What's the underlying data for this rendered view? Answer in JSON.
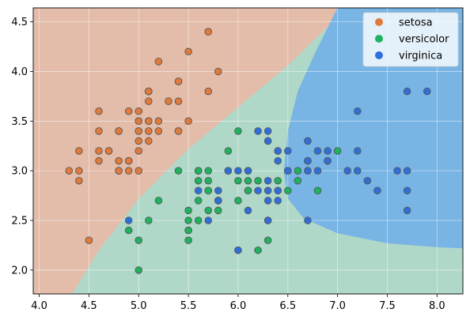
{
  "chart_data": {
    "type": "scatter",
    "title": "",
    "xlabel": "",
    "ylabel": "",
    "xlim": [
      3.94,
      8.26
    ],
    "ylim": [
      1.76,
      4.64
    ],
    "xticks": [
      4.0,
      4.5,
      5.0,
      5.5,
      6.0,
      6.5,
      7.0,
      7.5,
      8.0
    ],
    "yticks": [
      2.0,
      2.5,
      3.0,
      3.5,
      4.0,
      4.5
    ],
    "xtick_labels": [
      "4.0",
      "4.5",
      "5.0",
      "5.5",
      "6.0",
      "6.5",
      "7.0",
      "7.5",
      "8.0"
    ],
    "ytick_labels": [
      "2.0",
      "2.5",
      "3.0",
      "3.5",
      "4.0",
      "4.5"
    ],
    "grid": true,
    "legend_position": "top-right",
    "background_regions": [
      {
        "class": "setosa",
        "color": "#e3bcaa"
      },
      {
        "class": "versicolor",
        "color": "#b0d8c8"
      },
      {
        "class": "virginica",
        "color": "#78b4e4"
      }
    ],
    "series": [
      {
        "name": "setosa",
        "color": "#e07b3c",
        "points": [
          [
            5.1,
            3.5
          ],
          [
            4.9,
            3.0
          ],
          [
            4.7,
            3.2
          ],
          [
            4.6,
            3.1
          ],
          [
            5.0,
            3.6
          ],
          [
            5.4,
            3.9
          ],
          [
            4.6,
            3.4
          ],
          [
            5.0,
            3.4
          ],
          [
            4.4,
            2.9
          ],
          [
            4.9,
            3.1
          ],
          [
            5.4,
            3.7
          ],
          [
            4.8,
            3.4
          ],
          [
            4.8,
            3.0
          ],
          [
            4.3,
            3.0
          ],
          [
            5.8,
            4.0
          ],
          [
            5.7,
            4.4
          ],
          [
            5.4,
            3.9
          ],
          [
            5.1,
            3.5
          ],
          [
            5.7,
            3.8
          ],
          [
            5.1,
            3.8
          ],
          [
            5.4,
            3.4
          ],
          [
            5.1,
            3.7
          ],
          [
            4.6,
            3.6
          ],
          [
            5.1,
            3.3
          ],
          [
            4.8,
            3.4
          ],
          [
            5.0,
            3.0
          ],
          [
            5.0,
            3.4
          ],
          [
            5.2,
            3.5
          ],
          [
            5.2,
            3.4
          ],
          [
            4.7,
            3.2
          ],
          [
            4.8,
            3.1
          ],
          [
            5.4,
            3.4
          ],
          [
            5.2,
            4.1
          ],
          [
            5.5,
            4.2
          ],
          [
            4.9,
            3.1
          ],
          [
            5.0,
            3.2
          ],
          [
            5.5,
            3.5
          ],
          [
            4.9,
            3.6
          ],
          [
            4.4,
            3.0
          ],
          [
            5.1,
            3.4
          ],
          [
            5.0,
            3.5
          ],
          [
            4.5,
            2.3
          ],
          [
            4.4,
            3.2
          ],
          [
            5.0,
            3.5
          ],
          [
            5.1,
            3.8
          ],
          [
            4.8,
            3.0
          ],
          [
            5.1,
            3.8
          ],
          [
            4.6,
            3.2
          ],
          [
            5.3,
            3.7
          ],
          [
            5.0,
            3.3
          ]
        ]
      },
      {
        "name": "versicolor",
        "color": "#1fb25f",
        "points": [
          [
            7.0,
            3.2
          ],
          [
            6.4,
            3.2
          ],
          [
            6.9,
            3.1
          ],
          [
            5.5,
            2.3
          ],
          [
            6.5,
            2.8
          ],
          [
            5.7,
            2.8
          ],
          [
            6.3,
            3.3
          ],
          [
            4.9,
            2.4
          ],
          [
            6.6,
            2.9
          ],
          [
            5.2,
            2.7
          ],
          [
            5.0,
            2.0
          ],
          [
            5.9,
            3.0
          ],
          [
            6.0,
            2.2
          ],
          [
            6.1,
            2.9
          ],
          [
            5.6,
            2.9
          ],
          [
            6.7,
            3.1
          ],
          [
            5.6,
            3.0
          ],
          [
            5.8,
            2.7
          ],
          [
            6.2,
            2.2
          ],
          [
            5.6,
            2.5
          ],
          [
            5.9,
            3.2
          ],
          [
            6.1,
            2.8
          ],
          [
            6.3,
            2.5
          ],
          [
            6.1,
            2.8
          ],
          [
            6.4,
            2.9
          ],
          [
            6.6,
            3.0
          ],
          [
            6.8,
            2.8
          ],
          [
            6.7,
            3.0
          ],
          [
            6.0,
            2.9
          ],
          [
            5.7,
            2.6
          ],
          [
            5.5,
            2.4
          ],
          [
            5.5,
            2.4
          ],
          [
            5.8,
            2.7
          ],
          [
            6.0,
            2.7
          ],
          [
            5.4,
            3.0
          ],
          [
            6.0,
            3.4
          ],
          [
            6.7,
            3.1
          ],
          [
            6.3,
            2.3
          ],
          [
            5.6,
            3.0
          ],
          [
            5.5,
            2.5
          ],
          [
            5.5,
            2.6
          ],
          [
            6.1,
            3.0
          ],
          [
            5.8,
            2.6
          ],
          [
            5.0,
            2.3
          ],
          [
            5.6,
            2.7
          ],
          [
            5.7,
            3.0
          ],
          [
            5.7,
            2.9
          ],
          [
            6.2,
            2.9
          ],
          [
            5.1,
            2.5
          ],
          [
            5.7,
            2.8
          ]
        ]
      },
      {
        "name": "virginica",
        "color": "#2f6fdc",
        "points": [
          [
            6.3,
            3.3
          ],
          [
            5.8,
            2.7
          ],
          [
            7.1,
            3.0
          ],
          [
            6.3,
            2.9
          ],
          [
            6.5,
            3.0
          ],
          [
            7.6,
            3.0
          ],
          [
            4.9,
            2.5
          ],
          [
            7.3,
            2.9
          ],
          [
            6.7,
            2.5
          ],
          [
            7.2,
            3.6
          ],
          [
            6.5,
            3.2
          ],
          [
            6.4,
            2.7
          ],
          [
            6.8,
            3.0
          ],
          [
            5.7,
            2.5
          ],
          [
            5.8,
            2.8
          ],
          [
            6.4,
            3.2
          ],
          [
            6.5,
            3.0
          ],
          [
            7.7,
            3.8
          ],
          [
            7.7,
            2.6
          ],
          [
            6.0,
            2.2
          ],
          [
            6.9,
            3.2
          ],
          [
            5.6,
            2.8
          ],
          [
            7.7,
            2.8
          ],
          [
            6.3,
            2.7
          ],
          [
            6.7,
            3.3
          ],
          [
            7.2,
            3.2
          ],
          [
            6.2,
            2.8
          ],
          [
            6.1,
            3.0
          ],
          [
            6.4,
            2.8
          ],
          [
            7.2,
            3.0
          ],
          [
            7.4,
            2.8
          ],
          [
            7.9,
            3.8
          ],
          [
            6.4,
            2.8
          ],
          [
            6.3,
            2.8
          ],
          [
            6.1,
            2.6
          ],
          [
            7.7,
            3.0
          ],
          [
            6.3,
            3.4
          ],
          [
            6.4,
            3.1
          ],
          [
            6.0,
            3.0
          ],
          [
            6.9,
            3.1
          ],
          [
            6.7,
            3.1
          ],
          [
            6.9,
            3.1
          ],
          [
            5.8,
            2.7
          ],
          [
            6.8,
            3.2
          ],
          [
            6.7,
            3.3
          ],
          [
            6.7,
            3.0
          ],
          [
            6.3,
            2.5
          ],
          [
            6.5,
            3.0
          ],
          [
            6.2,
            3.4
          ],
          [
            5.9,
            3.0
          ]
        ]
      }
    ]
  }
}
